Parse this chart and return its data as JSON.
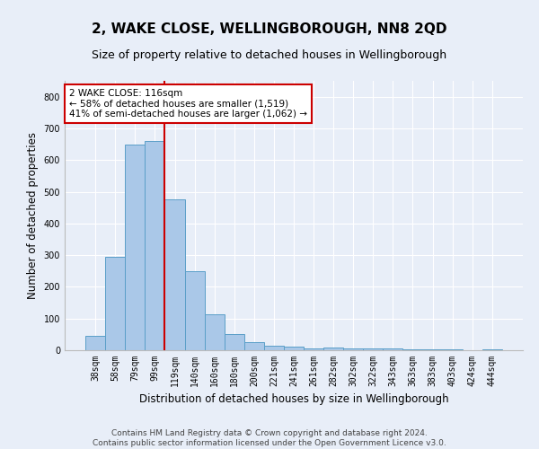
{
  "title": "2, WAKE CLOSE, WELLINGBOROUGH, NN8 2QD",
  "subtitle": "Size of property relative to detached houses in Wellingborough",
  "xlabel": "Distribution of detached houses by size in Wellingborough",
  "ylabel": "Number of detached properties",
  "categories": [
    "38sqm",
    "58sqm",
    "79sqm",
    "99sqm",
    "119sqm",
    "140sqm",
    "160sqm",
    "180sqm",
    "200sqm",
    "221sqm",
    "241sqm",
    "261sqm",
    "282sqm",
    "302sqm",
    "322sqm",
    "343sqm",
    "363sqm",
    "383sqm",
    "403sqm",
    "424sqm",
    "444sqm"
  ],
  "values": [
    45,
    295,
    650,
    660,
    475,
    248,
    113,
    50,
    25,
    15,
    10,
    5,
    8,
    5,
    7,
    5,
    3,
    2,
    2,
    0,
    3
  ],
  "bar_color": "#aac8e8",
  "bar_edge_color": "#5a9fc8",
  "vline_x": 3.5,
  "vline_color": "#cc0000",
  "annotation_text": "2 WAKE CLOSE: 116sqm\n← 58% of detached houses are smaller (1,519)\n41% of semi-detached houses are larger (1,062) →",
  "annotation_box_color": "#ffffff",
  "annotation_box_edge_color": "#cc0000",
  "ylim": [
    0,
    850
  ],
  "yticks": [
    0,
    100,
    200,
    300,
    400,
    500,
    600,
    700,
    800
  ],
  "background_color": "#e8eef8",
  "plot_background_color": "#e8eef8",
  "footer": "Contains HM Land Registry data © Crown copyright and database right 2024.\nContains public sector information licensed under the Open Government Licence v3.0.",
  "title_fontsize": 11,
  "subtitle_fontsize": 9,
  "xlabel_fontsize": 8.5,
  "ylabel_fontsize": 8.5,
  "tick_fontsize": 7,
  "footer_fontsize": 6.5,
  "annot_fontsize": 7.5
}
